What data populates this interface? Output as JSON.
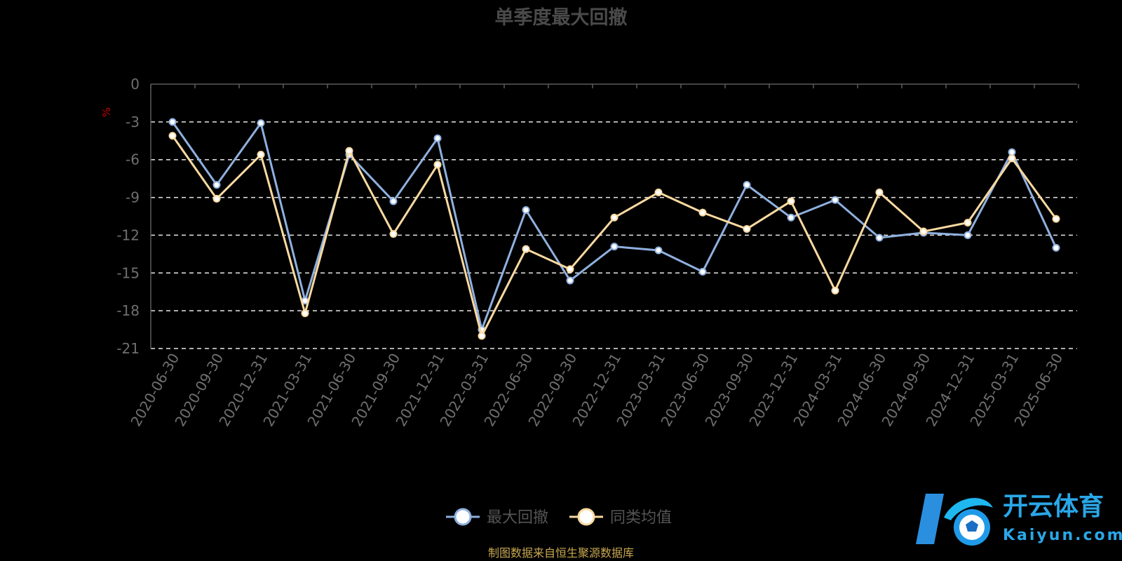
{
  "chart_data": {
    "type": "line",
    "title": "单季度最大回撤",
    "ylabel": "%",
    "ylim": [
      -21,
      0
    ],
    "yticks": [
      0,
      -3,
      -6,
      -9,
      -12,
      -15,
      -18,
      -21
    ],
    "grid": true,
    "legend_position": "bottom",
    "categories": [
      "2020-06-30",
      "2020-09-30",
      "2020-12-31",
      "2021-03-31",
      "2021-06-30",
      "2021-09-30",
      "2021-12-31",
      "2022-03-31",
      "2022-06-30",
      "2022-09-30",
      "2022-12-31",
      "2023-03-31",
      "2023-06-30",
      "2023-09-30",
      "2023-12-31",
      "2024-03-31",
      "2024-06-30",
      "2024-09-30",
      "2024-12-31",
      "2025-03-31",
      "2025-06-30"
    ],
    "series": [
      {
        "name": "最大回撤",
        "color": "#8fb0df",
        "values": [
          -3.0,
          -8.0,
          -3.1,
          -17.2,
          -5.6,
          -9.3,
          -4.3,
          -19.5,
          -10.0,
          -15.6,
          -12.9,
          -13.2,
          -14.9,
          -8.0,
          -10.6,
          -9.2,
          -12.2,
          -11.8,
          -12.0,
          -5.4,
          -13.0
        ]
      },
      {
        "name": "同类均值",
        "color": "#fad9a0",
        "values": [
          -4.1,
          -9.1,
          -5.6,
          -18.2,
          -5.3,
          -11.9,
          -6.4,
          -20.0,
          -13.1,
          -14.7,
          -10.6,
          -8.6,
          -10.2,
          -11.5,
          -9.3,
          -16.4,
          -8.6,
          -11.7,
          -11.0,
          -5.9,
          -10.7
        ]
      }
    ],
    "source_note": "制图数据来自恒生聚源数据库"
  },
  "watermark": {
    "brand_cn": "开云体育",
    "brand_en": "Kaiyun.com",
    "icon": "kaiyun-soccer-logo-icon"
  }
}
